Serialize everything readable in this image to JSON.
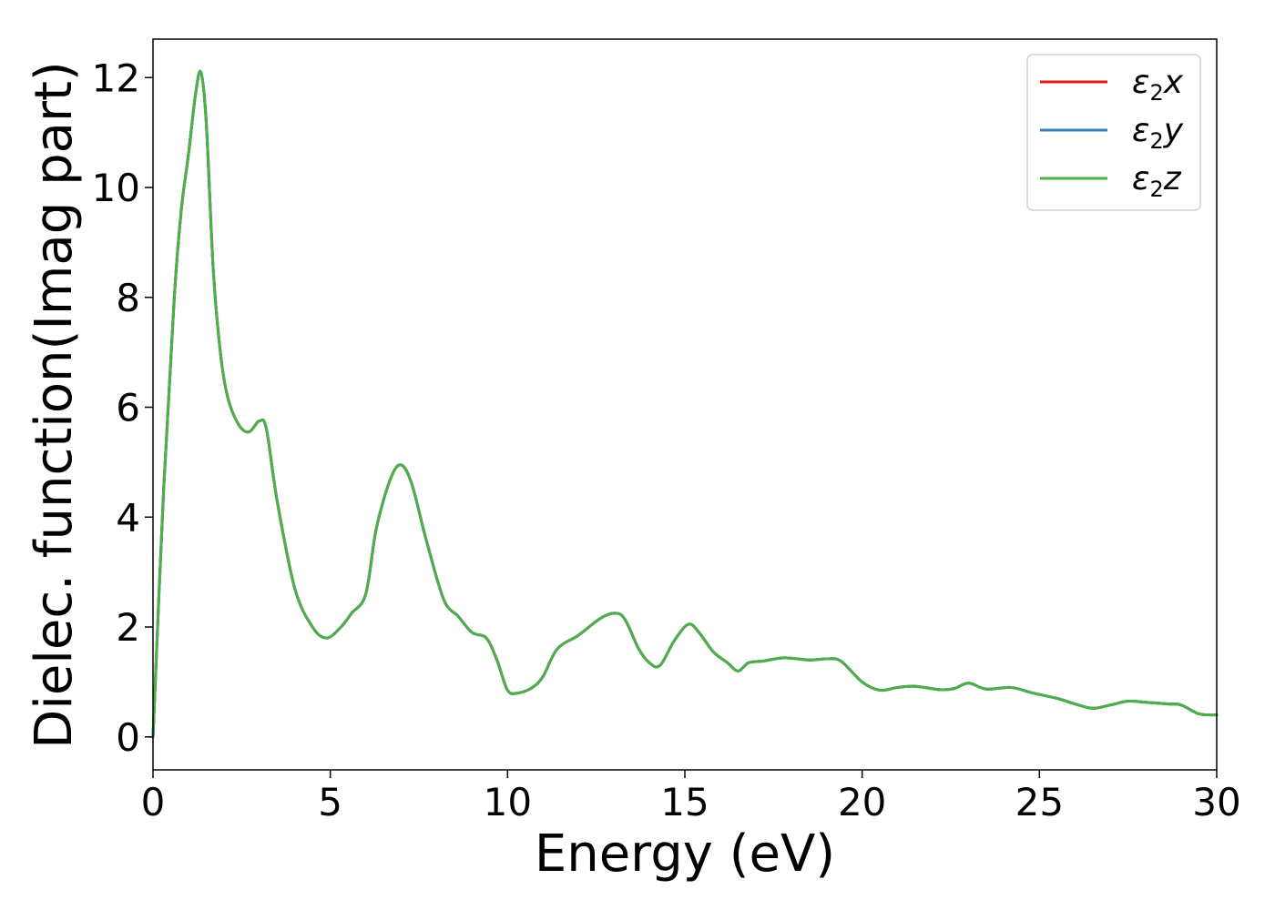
{
  "chart_data": {
    "type": "line",
    "title": "",
    "xlabel": "Energy (eV)",
    "ylabel": "Dielec. function(Imag part)",
    "xlim": [
      0,
      30
    ],
    "ylim": [
      -0.6,
      12.7
    ],
    "xticks": [
      "0",
      "5",
      "10",
      "15",
      "20",
      "25",
      "30"
    ],
    "yticks": [
      "0",
      "2",
      "4",
      "6",
      "8",
      "10",
      "12"
    ],
    "grid": false,
    "legend_position": "top-right",
    "legend": [
      {
        "symbol": "ε",
        "subscript": "2",
        "suffix": "x",
        "color": "#e41a1c"
      },
      {
        "symbol": "ε",
        "subscript": "2",
        "suffix": "y",
        "color": "#377eb8"
      },
      {
        "symbol": "ε",
        "subscript": "2",
        "suffix": "z",
        "color": "#4daf4a"
      }
    ],
    "x": [
      0,
      0.3,
      0.6,
      0.8,
      1.0,
      1.2,
      1.35,
      1.5,
      1.7,
      1.9,
      2.1,
      2.4,
      2.7,
      3.0,
      3.2,
      3.5,
      4.0,
      4.5,
      4.9,
      5.3,
      5.6,
      6.0,
      6.3,
      6.7,
      7.0,
      7.3,
      7.7,
      8.2,
      8.6,
      9.0,
      9.4,
      9.7,
      10.0,
      10.3,
      10.7,
      11.0,
      11.4,
      12.0,
      12.6,
      13.0,
      13.3,
      13.7,
      14.0,
      14.3,
      14.7,
      15.1,
      15.4,
      15.8,
      16.2,
      16.5,
      16.8,
      17.2,
      17.8,
      18.5,
      19.0,
      19.4,
      20.0,
      20.5,
      21.0,
      21.5,
      22.2,
      22.6,
      23.0,
      23.5,
      24.2,
      24.8,
      25.5,
      26.0,
      26.5,
      27.0,
      27.5,
      28.0,
      28.6,
      29.0,
      29.5,
      30.0
    ],
    "series": [
      {
        "name": "ε2x",
        "color": "#e41a1c",
        "values": [
          0,
          4.5,
          8.0,
          9.6,
          10.6,
          11.7,
          12.1,
          11.2,
          8.5,
          7.0,
          6.2,
          5.7,
          5.55,
          5.75,
          5.6,
          4.3,
          2.7,
          2.0,
          1.8,
          2.0,
          2.25,
          2.6,
          3.8,
          4.7,
          4.95,
          4.6,
          3.6,
          2.5,
          2.2,
          1.9,
          1.8,
          1.4,
          0.85,
          0.8,
          0.9,
          1.1,
          1.6,
          1.85,
          2.15,
          2.25,
          2.15,
          1.6,
          1.35,
          1.3,
          1.75,
          2.05,
          1.9,
          1.55,
          1.35,
          1.2,
          1.35,
          1.38,
          1.44,
          1.4,
          1.42,
          1.38,
          1.0,
          0.85,
          0.9,
          0.92,
          0.86,
          0.88,
          0.98,
          0.87,
          0.9,
          0.8,
          0.7,
          0.6,
          0.52,
          0.58,
          0.65,
          0.63,
          0.6,
          0.58,
          0.42,
          0.4
        ]
      },
      {
        "name": "ε2y",
        "color": "#377eb8",
        "values": [
          0,
          4.5,
          8.0,
          9.6,
          10.6,
          11.7,
          12.1,
          11.2,
          8.5,
          7.0,
          6.2,
          5.7,
          5.55,
          5.75,
          5.6,
          4.3,
          2.7,
          2.0,
          1.8,
          2.0,
          2.25,
          2.6,
          3.8,
          4.7,
          4.95,
          4.6,
          3.6,
          2.5,
          2.2,
          1.9,
          1.8,
          1.4,
          0.85,
          0.8,
          0.9,
          1.1,
          1.6,
          1.85,
          2.15,
          2.25,
          2.15,
          1.6,
          1.35,
          1.3,
          1.75,
          2.05,
          1.9,
          1.55,
          1.35,
          1.2,
          1.35,
          1.38,
          1.44,
          1.4,
          1.42,
          1.38,
          1.0,
          0.85,
          0.9,
          0.92,
          0.86,
          0.88,
          0.98,
          0.87,
          0.9,
          0.8,
          0.7,
          0.6,
          0.52,
          0.58,
          0.65,
          0.63,
          0.6,
          0.58,
          0.42,
          0.4
        ]
      },
      {
        "name": "ε2z",
        "color": "#4daf4a",
        "values": [
          0,
          4.5,
          8.0,
          9.6,
          10.6,
          11.7,
          12.1,
          11.2,
          8.5,
          7.0,
          6.2,
          5.7,
          5.55,
          5.75,
          5.6,
          4.3,
          2.7,
          2.0,
          1.8,
          2.0,
          2.25,
          2.6,
          3.8,
          4.7,
          4.95,
          4.6,
          3.6,
          2.5,
          2.2,
          1.9,
          1.8,
          1.4,
          0.85,
          0.8,
          0.9,
          1.1,
          1.6,
          1.85,
          2.15,
          2.25,
          2.15,
          1.6,
          1.35,
          1.3,
          1.75,
          2.05,
          1.9,
          1.55,
          1.35,
          1.2,
          1.35,
          1.38,
          1.44,
          1.4,
          1.42,
          1.38,
          1.0,
          0.85,
          0.9,
          0.92,
          0.86,
          0.88,
          0.98,
          0.87,
          0.9,
          0.8,
          0.7,
          0.6,
          0.52,
          0.58,
          0.65,
          0.63,
          0.6,
          0.58,
          0.42,
          0.4
        ]
      }
    ]
  }
}
